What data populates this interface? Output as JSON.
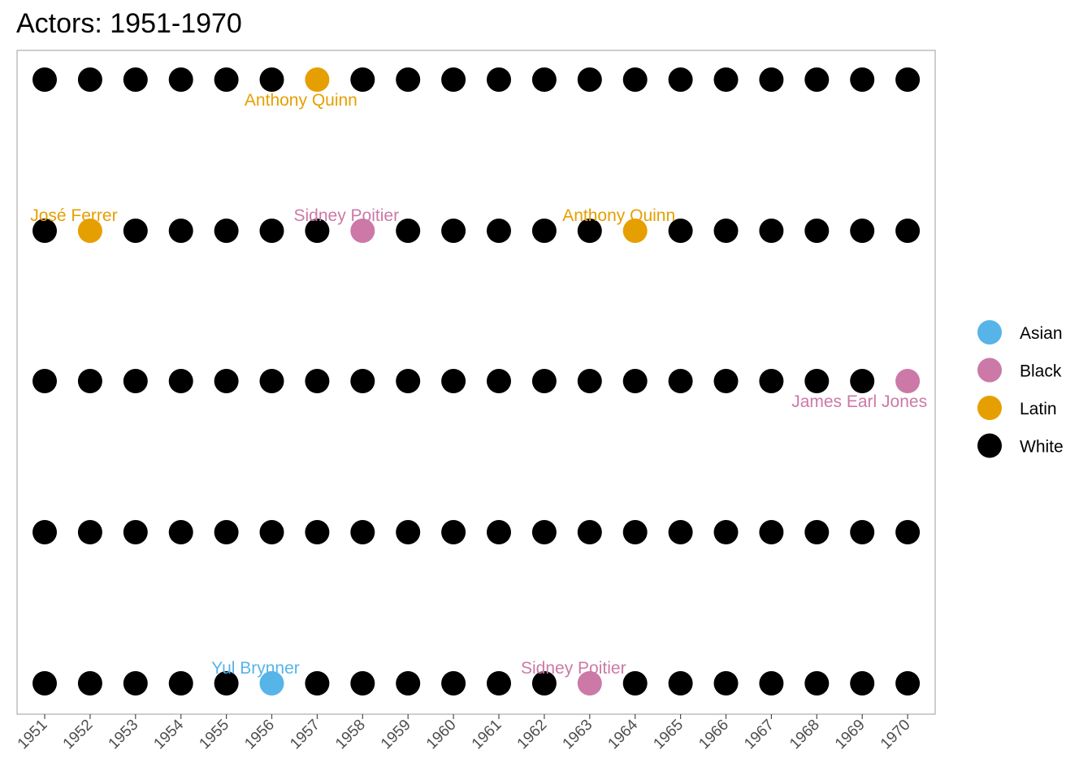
{
  "chart_data": {
    "type": "scatter",
    "title": "Actors: 1951-1970",
    "xlabel": "",
    "ylabel": "",
    "x_ticks": [
      "1951",
      "1952",
      "1953",
      "1954",
      "1955",
      "1956",
      "1957",
      "1958",
      "1959",
      "1960",
      "1961",
      "1962",
      "1963",
      "1964",
      "1965",
      "1966",
      "1967",
      "1968",
      "1969",
      "1970"
    ],
    "rows": 5,
    "default_group": "White",
    "groups": [
      {
        "name": "Asian",
        "color": "#56B4E9"
      },
      {
        "name": "Black",
        "color": "#CC79A7"
      },
      {
        "name": "Latin",
        "color": "#E69F00"
      },
      {
        "name": "White",
        "color": "#000000"
      }
    ],
    "highlights": [
      {
        "year": "1957",
        "row": 1,
        "group": "Latin",
        "label": "Anthony Quinn",
        "label_pos": "below"
      },
      {
        "year": "1952",
        "row": 2,
        "group": "Latin",
        "label": "José Ferrer",
        "label_pos": "above"
      },
      {
        "year": "1958",
        "row": 2,
        "group": "Black",
        "label": "Sidney Poitier",
        "label_pos": "above"
      },
      {
        "year": "1964",
        "row": 2,
        "group": "Latin",
        "label": "Anthony Quinn",
        "label_pos": "above"
      },
      {
        "year": "1970",
        "row": 3,
        "group": "Black",
        "label": "James Earl Jones",
        "label_pos": "below"
      },
      {
        "year": "1956",
        "row": 5,
        "group": "Asian",
        "label": "Yul Brynner",
        "label_pos": "above"
      },
      {
        "year": "1963",
        "row": 5,
        "group": "Black",
        "label": "Sidney Poitier",
        "label_pos": "above"
      }
    ],
    "grid": false,
    "legend_position": "right"
  }
}
